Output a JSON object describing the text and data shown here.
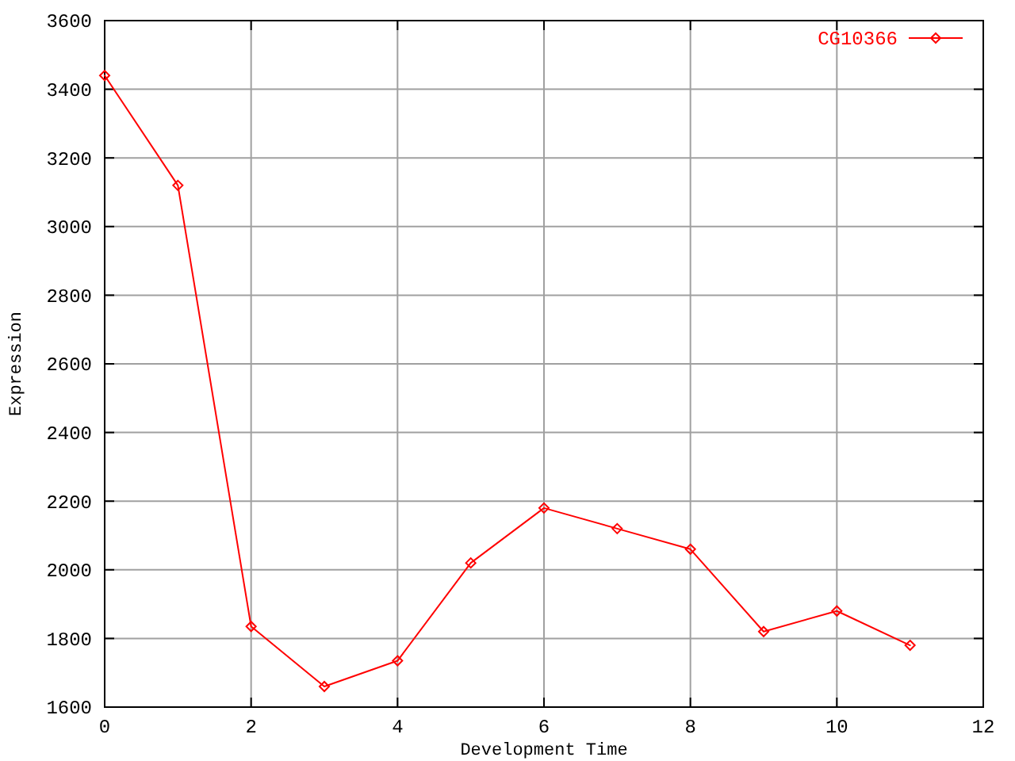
{
  "chart_data": {
    "type": "line",
    "xlabel": "Development Time",
    "ylabel": "Expression",
    "x": [
      0,
      1,
      2,
      3,
      4,
      5,
      6,
      7,
      8,
      9,
      10,
      11
    ],
    "series": [
      {
        "name": "CG10366",
        "color": "#ff0000",
        "values": [
          3440,
          3120,
          1835,
          1660,
          1735,
          2020,
          2180,
          2120,
          2060,
          1820,
          1880,
          1780
        ]
      }
    ],
    "xlim": [
      0,
      12
    ],
    "xticks": [
      0,
      2,
      4,
      6,
      8,
      10,
      12
    ],
    "ylim": [
      1600,
      3600
    ],
    "yticks": [
      1600,
      1800,
      2000,
      2200,
      2400,
      2600,
      2800,
      3000,
      3200,
      3400,
      3600
    ],
    "grid": true,
    "legend": "top right",
    "marker": "diamond",
    "line_style": "solid"
  }
}
